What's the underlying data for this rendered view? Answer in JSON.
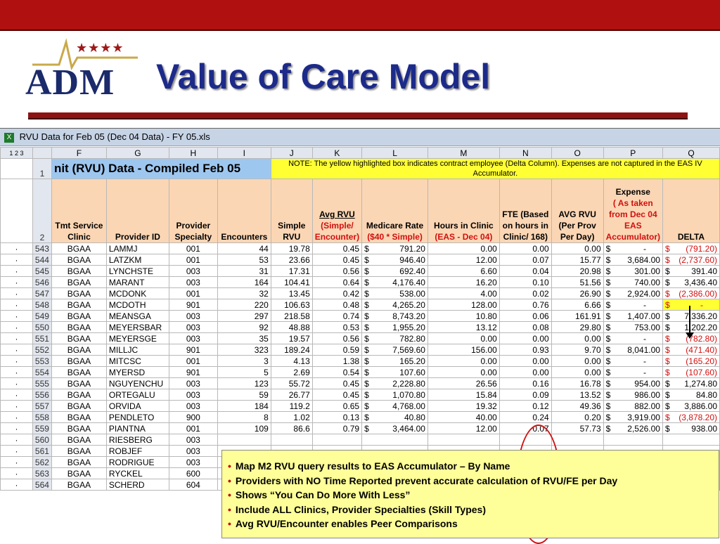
{
  "slide": {
    "logo_text": "ADM",
    "logo_stars": "★★★★",
    "title": "Value of Care Model"
  },
  "window": {
    "title": "RVU Data for Feb 05 (Dec 04 Data) - FY 05.xls"
  },
  "sheet": {
    "outline_levels": [
      "1",
      "2",
      "3"
    ],
    "columns": [
      "F",
      "G",
      "H",
      "I",
      "J",
      "K",
      "L",
      "M",
      "N",
      "O",
      "P",
      "Q"
    ],
    "title_cell": "nit (RVU) Data - Compiled Feb 05",
    "note": "NOTE: The yellow highlighted box indicates contract employee (Delta Column).  Expenses are not captured in the EAS IV Accumulator.",
    "headers": {
      "F": "Tmt Service Clinic",
      "G": "Provider ID",
      "H": "Provider Specialty",
      "I": "Encounters",
      "J": "Simple RVU",
      "K_line1": "Avg RVU",
      "K_line2": "(Simple/ Encounter)",
      "L_line1": "Medicare Rate",
      "L_line2": "($40 * Simple)",
      "M_line1": "Hours in Clinic",
      "M_line2": "(EAS - Dec 04)",
      "N": "FTE (Based on hours in Clinic/ 168)",
      "O": "AVG RVU (Per Prov Per Day)",
      "P_line1": "Expense",
      "P_line2": "( As taken from Dec 04 EAS Accumulator)",
      "Q": "DELTA"
    },
    "row_labels": {
      "r1": "1",
      "r2": "2"
    },
    "bullet": "·",
    "currency": "$",
    "rows": [
      {
        "n": "543",
        "clinic": "BGAA",
        "id": "LAMMJ",
        "spec": "001",
        "enc": "44",
        "rvu": "19.78",
        "avg": "0.45",
        "rate": "791.20",
        "hours": "0.00",
        "fte": "0.00",
        "avgday": "0.00",
        "exp": "-",
        "delta": "(791.20)",
        "neg": true
      },
      {
        "n": "544",
        "clinic": "BGAA",
        "id": "LATZKM",
        "spec": "001",
        "enc": "53",
        "rvu": "23.66",
        "avg": "0.45",
        "rate": "946.40",
        "hours": "12.00",
        "fte": "0.07",
        "avgday": "15.77",
        "exp": "3,684.00",
        "delta": "(2,737.60)",
        "neg": true
      },
      {
        "n": "545",
        "clinic": "BGAA",
        "id": "LYNCHSTE",
        "spec": "003",
        "enc": "31",
        "rvu": "17.31",
        "avg": "0.56",
        "rate": "692.40",
        "hours": "6.60",
        "fte": "0.04",
        "avgday": "20.98",
        "exp": "301.00",
        "delta": "391.40",
        "neg": false
      },
      {
        "n": "546",
        "clinic": "BGAA",
        "id": "MARANT",
        "spec": "003",
        "enc": "164",
        "rvu": "104.41",
        "avg": "0.64",
        "rate": "4,176.40",
        "hours": "16.20",
        "fte": "0.10",
        "avgday": "51.56",
        "exp": "740.00",
        "delta": "3,436.40",
        "neg": false
      },
      {
        "n": "547",
        "clinic": "BGAA",
        "id": "MCDONK",
        "spec": "001",
        "enc": "32",
        "rvu": "13.45",
        "avg": "0.42",
        "rate": "538.00",
        "hours": "4.00",
        "fte": "0.02",
        "avgday": "26.90",
        "exp": "2,924.00",
        "delta": "(2,386.00)",
        "neg": true
      },
      {
        "n": "548",
        "clinic": "BGAA",
        "id": "MCDOTH",
        "spec": "901",
        "enc": "220",
        "rvu": "106.63",
        "avg": "0.48",
        "rate": "4,265.20",
        "hours": "128.00",
        "fte": "0.76",
        "avgday": "6.66",
        "exp": "-",
        "delta": "-",
        "neg": true,
        "yellow": true
      },
      {
        "n": "549",
        "clinic": "BGAA",
        "id": "MEANSGA",
        "spec": "003",
        "enc": "297",
        "rvu": "218.58",
        "avg": "0.74",
        "rate": "8,743.20",
        "hours": "10.80",
        "fte": "0.06",
        "avgday": "161.91",
        "exp": "1,407.00",
        "delta": "7,336.20",
        "neg": false
      },
      {
        "n": "550",
        "clinic": "BGAA",
        "id": "MEYERSBAR",
        "spec": "003",
        "enc": "92",
        "rvu": "48.88",
        "avg": "0.53",
        "rate": "1,955.20",
        "hours": "13.12",
        "fte": "0.08",
        "avgday": "29.80",
        "exp": "753.00",
        "delta": "1,202.20",
        "neg": false
      },
      {
        "n": "551",
        "clinic": "BGAA",
        "id": "MEYERSGE",
        "spec": "003",
        "enc": "35",
        "rvu": "19.57",
        "avg": "0.56",
        "rate": "782.80",
        "hours": "0.00",
        "fte": "0.00",
        "avgday": "0.00",
        "exp": "-",
        "delta": "(782.80)",
        "neg": true
      },
      {
        "n": "552",
        "clinic": "BGAA",
        "id": "MILLJC",
        "spec": "901",
        "enc": "323",
        "rvu": "189.24",
        "avg": "0.59",
        "rate": "7,569.60",
        "hours": "156.00",
        "fte": "0.93",
        "avgday": "9.70",
        "exp": "8,041.00",
        "delta": "(471.40)",
        "neg": true
      },
      {
        "n": "553",
        "clinic": "BGAA",
        "id": "MITCSC",
        "spec": "001",
        "enc": "3",
        "rvu": "4.13",
        "avg": "1.38",
        "rate": "165.20",
        "hours": "0.00",
        "fte": "0.00",
        "avgday": "0.00",
        "exp": "-",
        "delta": "(165.20)",
        "neg": true
      },
      {
        "n": "554",
        "clinic": "BGAA",
        "id": "MYERSD",
        "spec": "901",
        "enc": "5",
        "rvu": "2.69",
        "avg": "0.54",
        "rate": "107.60",
        "hours": "0.00",
        "fte": "0.00",
        "avgday": "0.00",
        "exp": "-",
        "delta": "(107.60)",
        "neg": true
      },
      {
        "n": "555",
        "clinic": "BGAA",
        "id": "NGUYENCHU",
        "spec": "003",
        "enc": "123",
        "rvu": "55.72",
        "avg": "0.45",
        "rate": "2,228.80",
        "hours": "26.56",
        "fte": "0.16",
        "avgday": "16.78",
        "exp": "954.00",
        "delta": "1,274.80",
        "neg": false
      },
      {
        "n": "556",
        "clinic": "BGAA",
        "id": "ORTEGALU",
        "spec": "003",
        "enc": "59",
        "rvu": "26.77",
        "avg": "0.45",
        "rate": "1,070.80",
        "hours": "15.84",
        "fte": "0.09",
        "avgday": "13.52",
        "exp": "986.00",
        "delta": "84.80",
        "neg": false
      },
      {
        "n": "557",
        "clinic": "BGAA",
        "id": "ORVIDA",
        "spec": "003",
        "enc": "184",
        "rvu": "119.2",
        "avg": "0.65",
        "rate": "4,768.00",
        "hours": "19.32",
        "fte": "0.12",
        "avgday": "49.36",
        "exp": "882.00",
        "delta": "3,886.00",
        "neg": false
      },
      {
        "n": "558",
        "clinic": "BGAA",
        "id": "PENDLETO",
        "spec": "900",
        "enc": "8",
        "rvu": "1.02",
        "avg": "0.13",
        "rate": "40.80",
        "hours": "40.00",
        "fte": "0.24",
        "avgday": "0.20",
        "exp": "3,919.00",
        "delta": "(3,878.20)",
        "neg": true
      },
      {
        "n": "559",
        "clinic": "BGAA",
        "id": "PIANTNA",
        "spec": "001",
        "enc": "109",
        "rvu": "86.6",
        "avg": "0.79",
        "rate": "3,464.00",
        "hours": "12.00",
        "fte": "0.07",
        "avgday": "57.73",
        "exp": "2,526.00",
        "delta": "938.00",
        "neg": false
      },
      {
        "n": "560",
        "clinic": "BGAA",
        "id": "RIESBERG",
        "spec": "003"
      },
      {
        "n": "561",
        "clinic": "BGAA",
        "id": "ROBJEF",
        "spec": "003"
      },
      {
        "n": "562",
        "clinic": "BGAA",
        "id": "RODRIGUE",
        "spec": "003"
      },
      {
        "n": "563",
        "clinic": "BGAA",
        "id": "RYCKEL",
        "spec": "600"
      },
      {
        "n": "564",
        "clinic": "BGAA",
        "id": "SCHERD",
        "spec": "604"
      }
    ]
  },
  "callout": {
    "bullet": "•",
    "items": [
      "Map M2 RVU query results to EAS Accumulator – By Name",
      "Providers with NO Time Reported prevent accurate calculation of RVU/FE per Day",
      "Shows “You Can Do More With Less”",
      "Include ALL Clinics, Provider Specialties (Skill Types)",
      "Avg RVU/Encounter enables Peer Comparisons"
    ]
  },
  "colors": {
    "banner": "#b01010",
    "title": "#1c2a8a",
    "header_fill": "#fbd6b4",
    "title_fill": "#9ec7f0",
    "note_fill": "#ffff33",
    "callout_fill": "#ffff99",
    "negative": "#d01010"
  }
}
